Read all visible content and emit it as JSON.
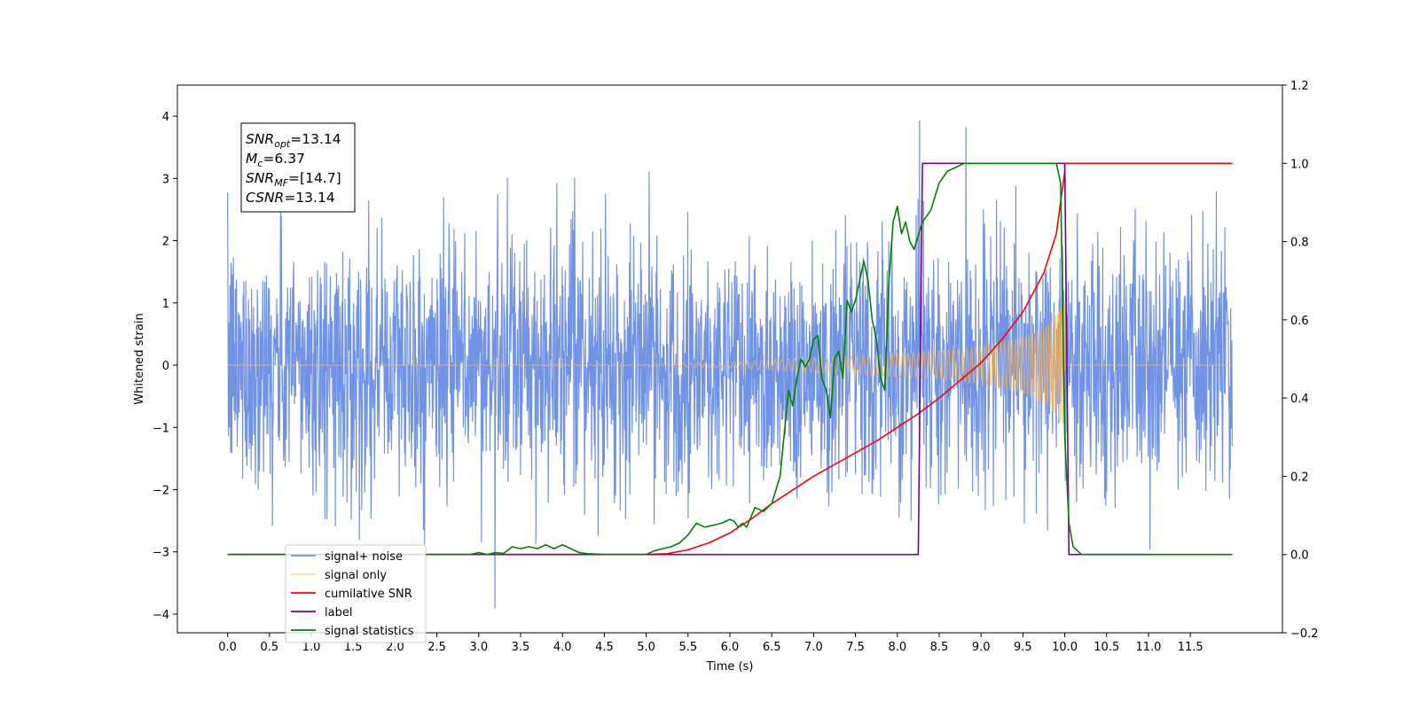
{
  "chart_data": {
    "type": "line",
    "xlabel": "Time (s)",
    "ylabel": "Whitened strain",
    "xlim": [
      -0.6,
      12.6
    ],
    "ylim": [
      -4.3,
      4.5
    ],
    "y2lim": [
      -0.2,
      1.2
    ],
    "xticks": [
      0.0,
      0.5,
      1.0,
      1.5,
      2.0,
      2.5,
      3.0,
      3.5,
      4.0,
      4.5,
      5.0,
      5.5,
      6.0,
      6.5,
      7.0,
      7.5,
      8.0,
      8.5,
      9.0,
      9.5,
      10.0,
      10.5,
      11.0,
      11.5
    ],
    "xtick_labels": [
      "0.0",
      "0.5",
      "1.0",
      "1.5",
      "2.0",
      "2.5",
      "3.0",
      "3.5",
      "4.0",
      "4.5",
      "5.0",
      "5.5",
      "6.0",
      "6.5",
      "7.0",
      "7.5",
      "8.0",
      "8.5",
      "9.0",
      "9.5",
      "10.0",
      "10.5",
      "11.0",
      "11.5"
    ],
    "yticks": [
      -4,
      -3,
      -2,
      -1,
      0,
      1,
      2,
      3,
      4
    ],
    "ytick_labels": [
      "−4",
      "−3",
      "−2",
      "−1",
      "0",
      "1",
      "2",
      "3",
      "4"
    ],
    "y2ticks": [
      -0.2,
      0.0,
      0.2,
      0.4,
      0.6,
      0.8,
      1.0,
      1.2
    ],
    "y2tick_labels": [
      "−0.2",
      "0.0",
      "0.2",
      "0.4",
      "0.6",
      "0.8",
      "1.0",
      "1.2"
    ],
    "grid": false,
    "legend_position": "lower-left",
    "annotation": {
      "lines": [
        {
          "base": "SNR",
          "sub": "opt",
          "value": "=13.14"
        },
        {
          "base": "M",
          "sub": "c",
          "value": "=6.37"
        },
        {
          "base": "SNR",
          "sub": "MF",
          "value": "=[14.7]"
        },
        {
          "base": "CSNR",
          "sub": "",
          "value": "=13.14"
        }
      ]
    },
    "series": [
      {
        "name": "signal+ noise",
        "axis": "left",
        "color": "#7193e6",
        "kind": "noise",
        "t_range": [
          0.0,
          12.0
        ],
        "amplitude_std": 1.0
      },
      {
        "name": "signal only",
        "axis": "left",
        "color": "#ffb84d",
        "kind": "chirp",
        "t_range": [
          0.0,
          10.0
        ],
        "envelope": {
          "t": [
            0,
            5,
            6,
            7,
            7.5,
            8,
            8.5,
            9,
            9.5,
            9.8,
            10.0
          ],
          "a": [
            0.0,
            0.01,
            0.05,
            0.12,
            0.15,
            0.19,
            0.23,
            0.3,
            0.45,
            0.65,
            1.0
          ]
        }
      },
      {
        "name": "cumilative SNR",
        "axis": "right",
        "color": "#ff0000",
        "x": [
          0.0,
          5.0,
          5.25,
          5.5,
          5.75,
          6.0,
          6.25,
          6.5,
          6.75,
          7.0,
          7.25,
          7.5,
          7.75,
          8.0,
          8.25,
          8.5,
          8.75,
          9.0,
          9.25,
          9.5,
          9.75,
          9.9,
          10.0,
          10.0,
          12.0
        ],
        "y": [
          0.0,
          0.0,
          0.002,
          0.012,
          0.03,
          0.055,
          0.09,
          0.13,
          0.165,
          0.2,
          0.23,
          0.26,
          0.29,
          0.325,
          0.36,
          0.4,
          0.445,
          0.49,
          0.55,
          0.62,
          0.72,
          0.82,
          0.98,
          1.0,
          1.0
        ]
      },
      {
        "name": "label",
        "axis": "right",
        "color": "#800080",
        "x": [
          0.0,
          8.25,
          8.3,
          10.0,
          10.05,
          11.0
        ],
        "y": [
          0.0,
          0.0,
          1.0,
          1.0,
          0.0,
          0.0
        ]
      },
      {
        "name": "signal statistics",
        "axis": "right",
        "color": "#008000",
        "x": [
          0.0,
          2.9,
          3.0,
          3.1,
          3.2,
          3.3,
          3.4,
          3.5,
          3.6,
          3.7,
          3.8,
          3.9,
          4.0,
          4.1,
          4.2,
          4.3,
          4.5,
          4.8,
          5.0,
          5.1,
          5.2,
          5.3,
          5.4,
          5.5,
          5.6,
          5.7,
          5.8,
          5.9,
          6.0,
          6.05,
          6.1,
          6.15,
          6.2,
          6.3,
          6.4,
          6.5,
          6.6,
          6.7,
          6.75,
          6.8,
          6.85,
          6.9,
          6.95,
          7.0,
          7.05,
          7.1,
          7.15,
          7.2,
          7.25,
          7.3,
          7.35,
          7.4,
          7.45,
          7.5,
          7.55,
          7.6,
          7.65,
          7.7,
          7.75,
          7.8,
          7.85,
          7.9,
          7.95,
          8.0,
          8.05,
          8.1,
          8.15,
          8.2,
          8.3,
          8.4,
          8.5,
          8.6,
          8.8,
          9.0,
          9.5,
          9.8,
          9.9,
          9.95,
          10.0,
          10.05,
          10.1,
          10.2,
          12.0
        ],
        "y": [
          0.0,
          0.0,
          0.005,
          0.0,
          0.005,
          0.003,
          0.02,
          0.015,
          0.02,
          0.015,
          0.025,
          0.015,
          0.025,
          0.015,
          0.005,
          0.002,
          0.0,
          0.0,
          0.0,
          0.01,
          0.015,
          0.02,
          0.03,
          0.05,
          0.08,
          0.07,
          0.075,
          0.08,
          0.09,
          0.085,
          0.07,
          0.08,
          0.07,
          0.12,
          0.11,
          0.13,
          0.2,
          0.42,
          0.38,
          0.45,
          0.5,
          0.48,
          0.5,
          0.55,
          0.56,
          0.45,
          0.42,
          0.35,
          0.5,
          0.52,
          0.45,
          0.65,
          0.62,
          0.65,
          0.7,
          0.75,
          0.7,
          0.6,
          0.55,
          0.45,
          0.42,
          0.7,
          0.85,
          0.89,
          0.82,
          0.85,
          0.8,
          0.78,
          0.85,
          0.88,
          0.95,
          0.98,
          1.0,
          1.0,
          1.0,
          1.0,
          1.0,
          0.95,
          0.3,
          0.08,
          0.02,
          0.0,
          0.0
        ]
      }
    ]
  }
}
